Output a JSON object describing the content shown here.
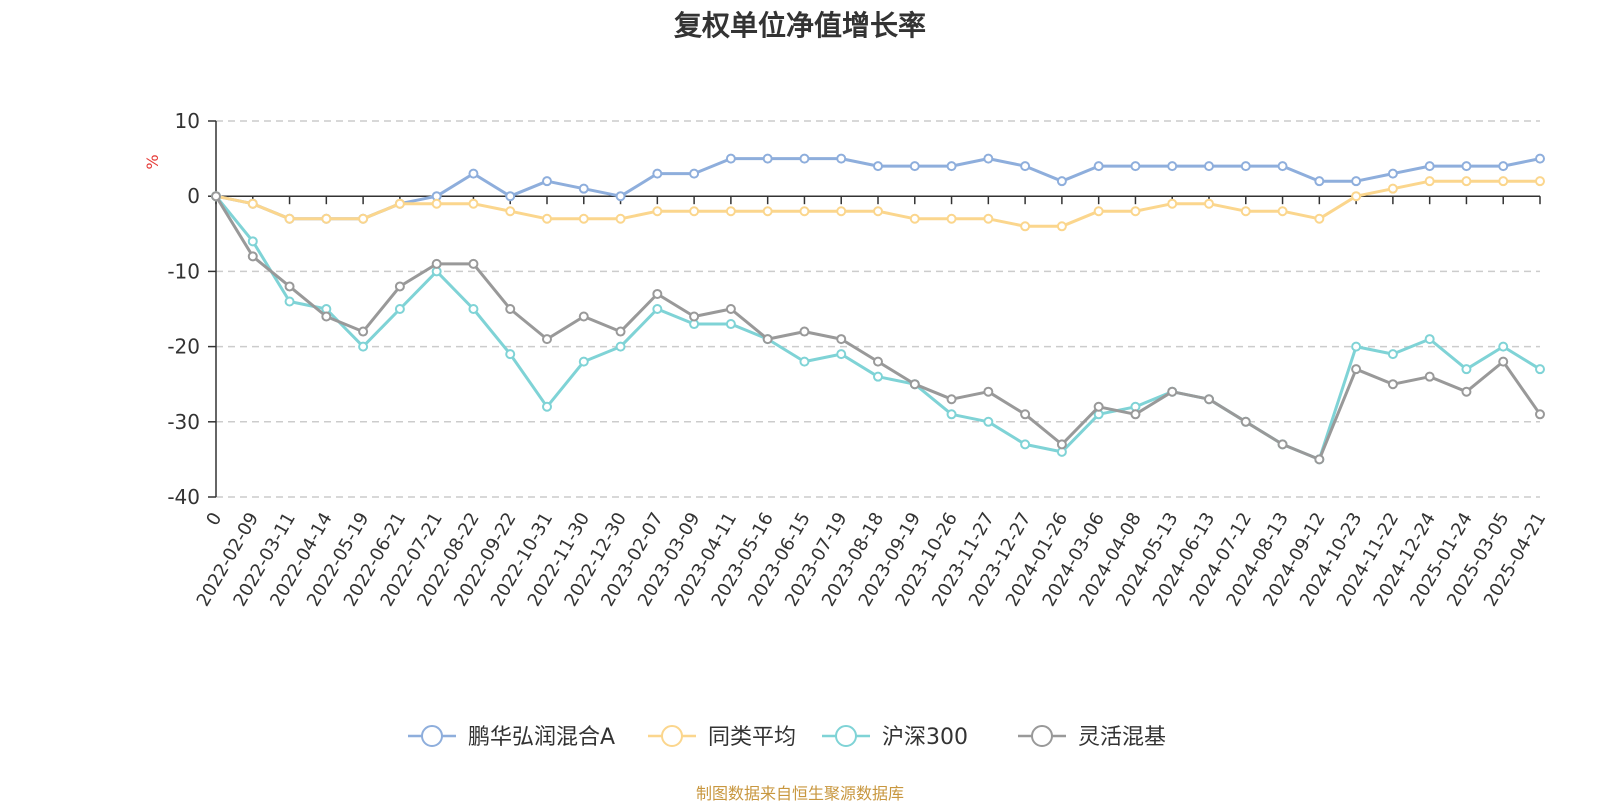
{
  "chart_data": {
    "type": "line",
    "title": "复权单位净值增长率",
    "ylabel": "%",
    "ylim": [
      -40,
      10
    ],
    "yticks": [
      10,
      0,
      -10,
      -20,
      -30,
      -40
    ],
    "grid": true,
    "legend_position": "bottom-center",
    "x_labels": [
      "0",
      "2022-02-09",
      "2022-03-11",
      "2022-04-14",
      "2022-05-19",
      "2022-06-21",
      "2022-07-21",
      "2022-08-22",
      "2022-09-22",
      "2022-10-31",
      "2022-11-30",
      "2022-12-30",
      "2023-02-07",
      "2023-03-09",
      "2023-04-11",
      "2023-05-16",
      "2023-06-15",
      "2023-07-19",
      "2023-08-18",
      "2023-09-19",
      "2023-10-26",
      "2023-11-27",
      "2023-12-27",
      "2024-01-26",
      "2024-03-06",
      "2024-04-08",
      "2024-05-13",
      "2024-06-13",
      "2024-07-12",
      "2024-08-13",
      "2024-09-12",
      "2024-10-23",
      "2024-11-22",
      "2024-12-24",
      "2025-01-24",
      "2025-03-05",
      "2025-04-21"
    ],
    "series": [
      {
        "name": "鹏华弘润混合A",
        "color": "#8eaedc",
        "values": [
          0,
          -1,
          -3,
          -3,
          -3,
          -1,
          0,
          3,
          0,
          2,
          1,
          0,
          3,
          3,
          5,
          5,
          5,
          5,
          4,
          4,
          4,
          5,
          4,
          2,
          4,
          4,
          4,
          4,
          4,
          4,
          2,
          2,
          3,
          4,
          4,
          4,
          5
        ]
      },
      {
        "name": "同类平均",
        "color": "#fbd68d",
        "values": [
          0,
          -1,
          -3,
          -3,
          -3,
          -1,
          -1,
          -1,
          -2,
          -3,
          -3,
          -3,
          -2,
          -2,
          -2,
          -2,
          -2,
          -2,
          -2,
          -3,
          -3,
          -3,
          -4,
          -4,
          -2,
          -2,
          -1,
          -1,
          -2,
          -2,
          -3,
          0,
          1,
          2,
          2,
          2,
          2
        ]
      },
      {
        "name": "沪深300",
        "color": "#7fd3d6",
        "values": [
          0,
          -6,
          -14,
          -15,
          -20,
          -15,
          -10,
          -15,
          -21,
          -28,
          -22,
          -20,
          -15,
          -17,
          -17,
          -19,
          -22,
          -21,
          -24,
          -25,
          -29,
          -30,
          -33,
          -34,
          -29,
          -28,
          -26,
          -27,
          -30,
          -33,
          -35,
          -20,
          -21,
          -19,
          -23,
          -20,
          -23
        ]
      },
      {
        "name": "灵活混基",
        "color": "#999999",
        "values": [
          0,
          -8,
          -12,
          -16,
          -18,
          -12,
          -9,
          -9,
          -15,
          -19,
          -16,
          -18,
          -13,
          -16,
          -15,
          -19,
          -18,
          -19,
          -22,
          -25,
          -27,
          -26,
          -29,
          -33,
          -28,
          -29,
          -26,
          -27,
          -30,
          -33,
          -35,
          -23,
          -25,
          -24,
          -26,
          -22,
          -29
        ]
      }
    ]
  },
  "source": "制图数据来自恒生聚源数据库"
}
